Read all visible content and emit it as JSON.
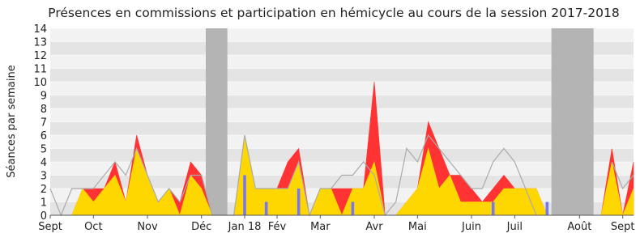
{
  "chart_data": {
    "type": "area",
    "title": "Présences en commissions et participation en hémicycle au cours de la session 2017-2018",
    "y_label": "Séances par semaine",
    "x": [
      0,
      1,
      2,
      3,
      4,
      5,
      6,
      7,
      8,
      9,
      10,
      11,
      12,
      13,
      14,
      15,
      16,
      17,
      18,
      19,
      20,
      21,
      22,
      23,
      24,
      25,
      26,
      27,
      28,
      29,
      30,
      31,
      32,
      33,
      34,
      35,
      36,
      37,
      38,
      39,
      40,
      41,
      42,
      43,
      44,
      45,
      46,
      47,
      48,
      49,
      50,
      51,
      52,
      53,
      54
    ],
    "xlim": [
      0,
      54
    ],
    "xticks": [
      {
        "value": 0,
        "label": "Sept"
      },
      {
        "value": 4,
        "label": "Oct"
      },
      {
        "value": 9,
        "label": "Nov"
      },
      {
        "value": 14,
        "label": "Déc"
      },
      {
        "value": 18,
        "label": "Jan 18"
      },
      {
        "value": 21,
        "label": "Fév"
      },
      {
        "value": 25,
        "label": "Mar"
      },
      {
        "value": 30,
        "label": "Avr"
      },
      {
        "value": 34,
        "label": "Mai"
      },
      {
        "value": 39,
        "label": "Juin"
      },
      {
        "value": 43,
        "label": "Juil"
      },
      {
        "value": 49,
        "label": "Août"
      },
      {
        "value": 53,
        "label": "Sept"
      }
    ],
    "ylim": [
      0,
      14
    ],
    "yticks": [
      0,
      1,
      2,
      3,
      4,
      5,
      6,
      7,
      8,
      9,
      10,
      11,
      12,
      13,
      14
    ],
    "shaded_ranges": [
      [
        14.4,
        16.4
      ],
      [
        46.4,
        50.3
      ]
    ],
    "shade_color": "#b4b4b4",
    "series": [
      {
        "kind": "area",
        "color": "#ff3333",
        "values": [
          0,
          0,
          0,
          2,
          2,
          2,
          4,
          1,
          6,
          3,
          1,
          2,
          1,
          4,
          3,
          0,
          0,
          0,
          6,
          2,
          2,
          2,
          4,
          5,
          0,
          2,
          2,
          2,
          2,
          2,
          10,
          0,
          0,
          1,
          2,
          7,
          5,
          3,
          3,
          2,
          1,
          2,
          3,
          2,
          2,
          2,
          0,
          0,
          0,
          0,
          0,
          0,
          5,
          0,
          4
        ]
      },
      {
        "kind": "area",
        "color": "#ffd700",
        "values": [
          0,
          0,
          0,
          2,
          1,
          2,
          3,
          1,
          5,
          3,
          1,
          2,
          0,
          3,
          2,
          0,
          0,
          0,
          6,
          2,
          2,
          2,
          2,
          4,
          0,
          2,
          2,
          0,
          2,
          2,
          4,
          0,
          0,
          1,
          2,
          5,
          2,
          3,
          1,
          1,
          1,
          1,
          2,
          2,
          2,
          2,
          0,
          0,
          0,
          0,
          0,
          0,
          4,
          0,
          2
        ]
      },
      {
        "kind": "line",
        "color": "#aaaaaa",
        "values": [
          2,
          0,
          2,
          2,
          2,
          3,
          4,
          3,
          5,
          3,
          1,
          2,
          1,
          3,
          3,
          0,
          0,
          0,
          6,
          2,
          2,
          2,
          2,
          4,
          0,
          2,
          2,
          3,
          3,
          4,
          3,
          0,
          1,
          5,
          4,
          6,
          5,
          4,
          3,
          2,
          2,
          4,
          5,
          4,
          2,
          0,
          null,
          null,
          null,
          null,
          null,
          null,
          4,
          2,
          3
        ]
      },
      {
        "kind": "bar",
        "color": "#7777ee",
        "values": [
          null,
          null,
          null,
          null,
          null,
          null,
          null,
          null,
          null,
          null,
          null,
          null,
          null,
          null,
          null,
          null,
          null,
          null,
          3,
          null,
          1,
          null,
          null,
          2,
          null,
          null,
          null,
          null,
          1,
          null,
          null,
          null,
          null,
          null,
          null,
          null,
          null,
          null,
          null,
          null,
          null,
          1,
          null,
          null,
          null,
          null,
          1,
          null,
          null,
          null,
          null,
          null,
          null,
          null,
          null
        ]
      }
    ]
  }
}
